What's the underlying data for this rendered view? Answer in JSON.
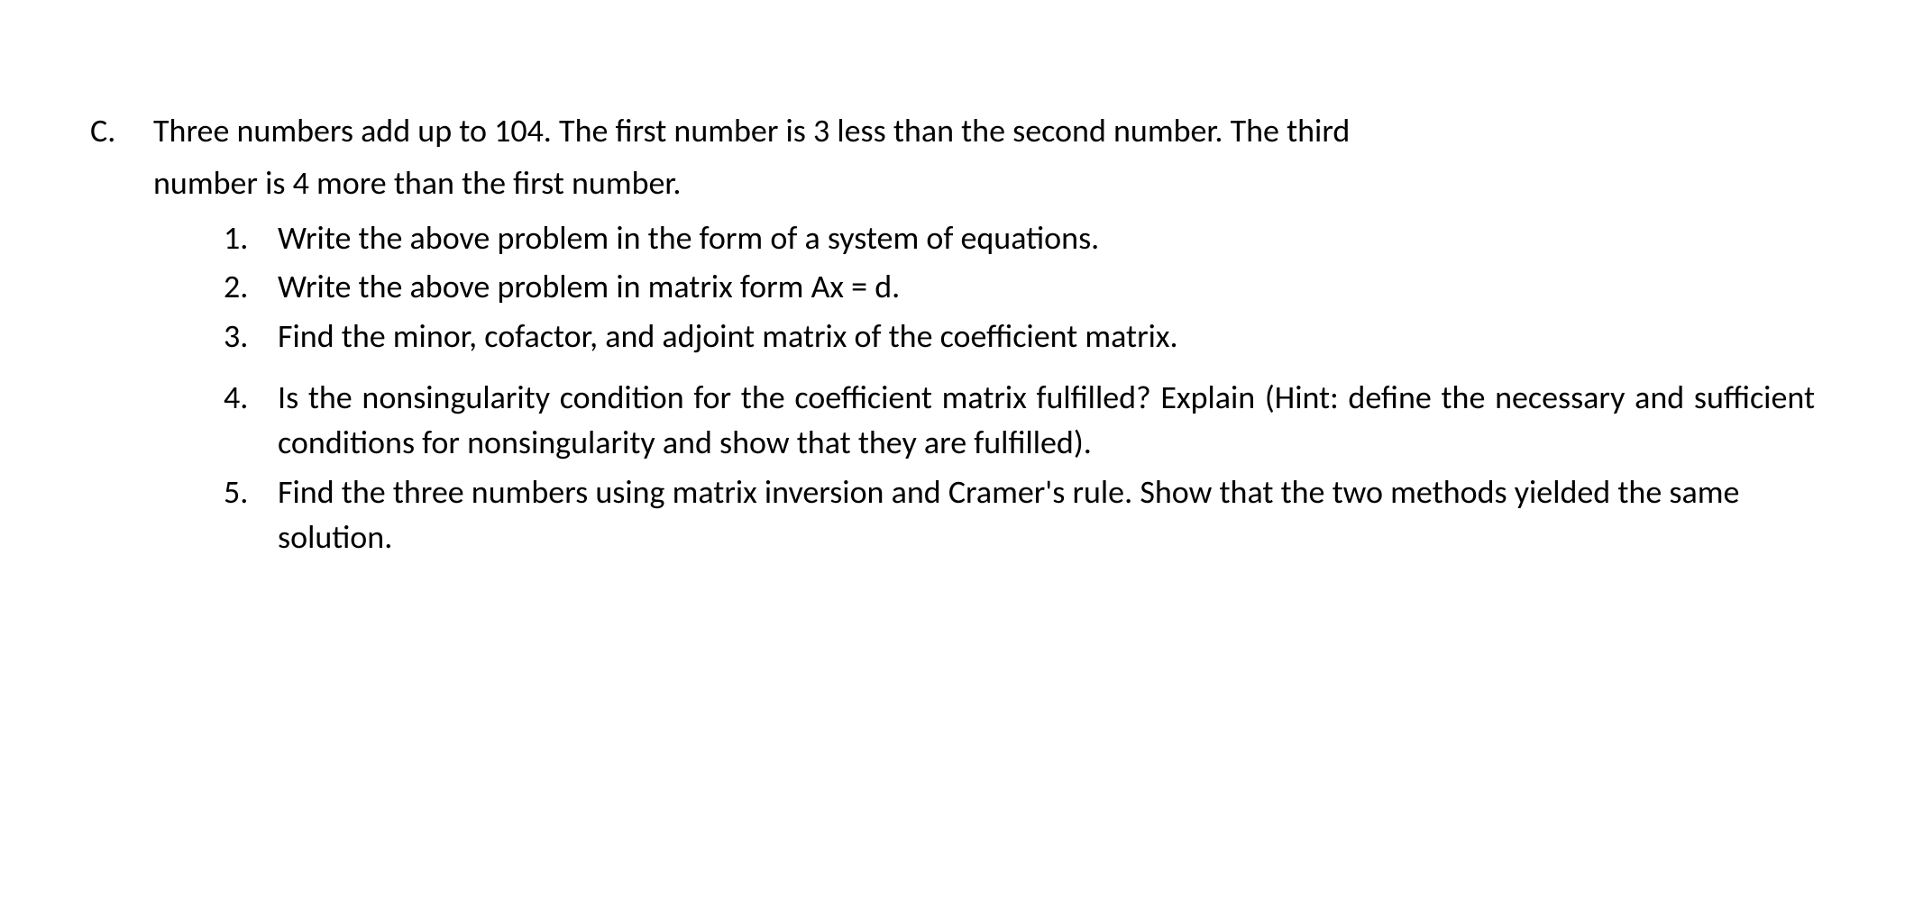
{
  "question": {
    "marker": "C.",
    "stem_line1": "Three numbers add up to 104. The first number is 3 less than the second number. The third",
    "stem_line2": "number is 4 more than the first number.",
    "parts": [
      {
        "marker": "1.",
        "text": "Write the above problem in the form of a system of equations.",
        "justify": false,
        "gap": false
      },
      {
        "marker": "2.",
        "text": "Write the above problem in matrix form Ax = d.",
        "justify": false,
        "gap": false
      },
      {
        "marker": "3.",
        "text": "Find the minor, cofactor, and adjoint matrix of the coefficient matrix.",
        "justify": false,
        "gap": false
      },
      {
        "marker": "4.",
        "text": "Is the nonsingularity condition for the coefficient matrix fulfilled? Explain (Hint: define the necessary and sufficient conditions for nonsingularity and show that they are fulfilled).",
        "justify": true,
        "gap": true
      },
      {
        "marker": "5.",
        "text": "Find the three numbers using matrix inversion and Cramer's rule. Show that the two methods yielded the same solution.",
        "justify": false,
        "gap": false
      }
    ]
  },
  "style": {
    "font_size_pt": 27,
    "text_color": "#000000",
    "background_color": "#ffffff"
  }
}
